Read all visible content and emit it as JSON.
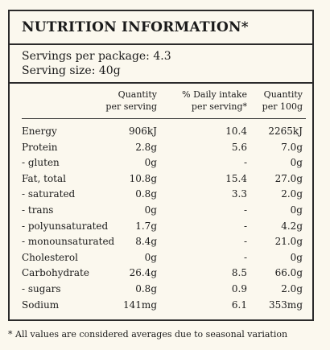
{
  "panel": {
    "title": "NUTRITION INFORMATION*",
    "servings_per_package": "Servings per package: 4.3",
    "serving_size": "Serving size: 40g",
    "headers": {
      "quantity_per_serving": [
        "Quantity",
        "per serving"
      ],
      "daily_intake_per_serving": [
        "% Daily intake",
        "per serving*"
      ],
      "quantity_per_100g": [
        "Quantity",
        "per 100g"
      ]
    },
    "rows": [
      {
        "name": "Energy",
        "per_serving": "906kJ",
        "daily_intake": "10.4",
        "per_100g": "2265kJ"
      },
      {
        "name": "Protein",
        "per_serving": "2.8g",
        "daily_intake": "5.6",
        "per_100g": "7.0g"
      },
      {
        "name": "- gluten",
        "per_serving": "0g",
        "daily_intake": "-",
        "per_100g": "0g"
      },
      {
        "name": "Fat, total",
        "per_serving": "10.8g",
        "daily_intake": "15.4",
        "per_100g": "27.0g"
      },
      {
        "name": "- saturated",
        "per_serving": "0.8g",
        "daily_intake": "3.3",
        "per_100g": "2.0g"
      },
      {
        "name": "- trans",
        "per_serving": "0g",
        "daily_intake": "-",
        "per_100g": "0g"
      },
      {
        "name": "- polyunsaturated",
        "per_serving": "1.7g",
        "daily_intake": "-",
        "per_100g": "4.2g"
      },
      {
        "name": "- monounsaturated",
        "per_serving": "8.4g",
        "daily_intake": "-",
        "per_100g": "21.0g"
      },
      {
        "name": "Cholesterol",
        "per_serving": "0g",
        "daily_intake": "-",
        "per_100g": "0g"
      },
      {
        "name": "Carbohydrate",
        "per_serving": "26.4g",
        "daily_intake": "8.5",
        "per_100g": "66.0g"
      },
      {
        "name": "- sugars",
        "per_serving": "0.8g",
        "daily_intake": "0.9",
        "per_100g": "2.0g"
      },
      {
        "name": "Sodium",
        "per_serving": "141mg",
        "daily_intake": "6.1",
        "per_100g": "353mg"
      }
    ]
  },
  "footnote": "* All values are considered averages due to seasonal variation"
}
